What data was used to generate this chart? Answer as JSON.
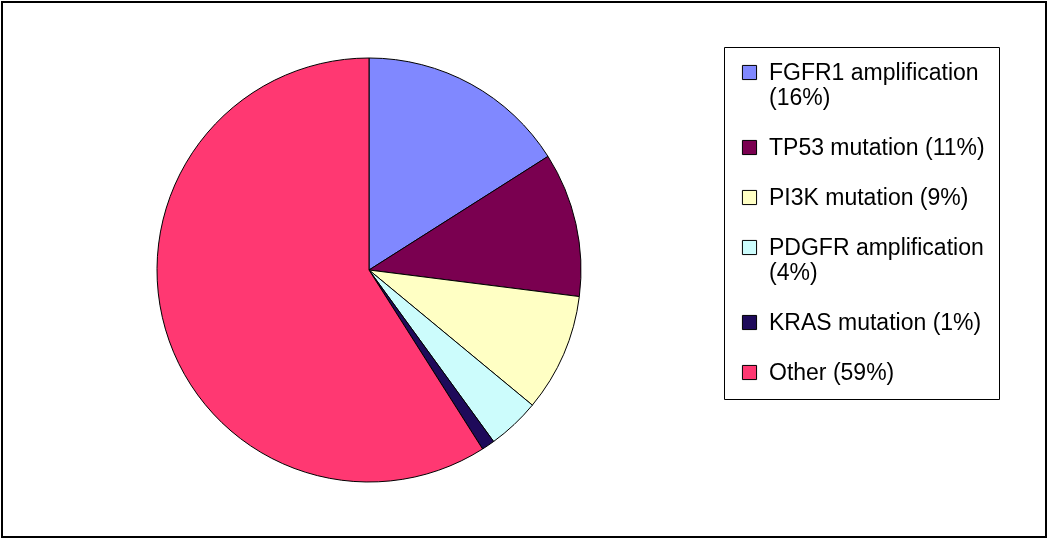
{
  "chart_data": {
    "type": "pie",
    "categories": [
      "FGFR1 amplification (16%)",
      "TP53 mutation (11%)",
      "PI3K mutation (9%)",
      "PDGFR amplification (4%)",
      "KRAS mutation (1%)",
      "Other (59%)"
    ],
    "values": [
      16,
      11,
      9,
      4,
      1,
      59
    ],
    "colors": [
      "#8088ff",
      "#7a0050",
      "#ffffc4",
      "#ccfcfc",
      "#1e0a5a",
      "#ff3872"
    ],
    "legend": "right"
  }
}
